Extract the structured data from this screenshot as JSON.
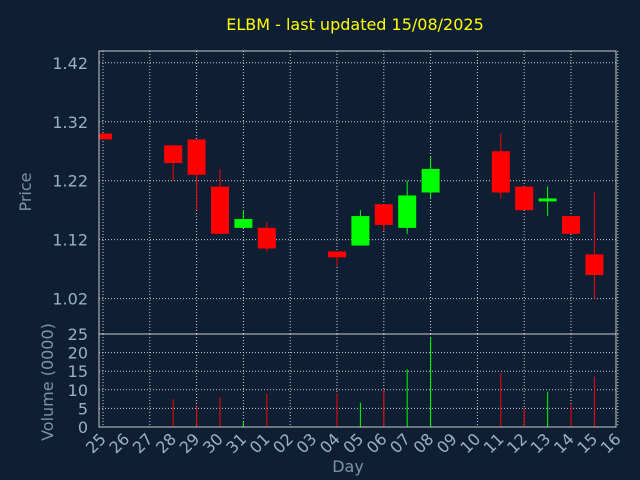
{
  "chart_data": {
    "type": "candlestick",
    "title": "ELBM - last updated 15/08/2025",
    "xlabel": "Day",
    "price_panel": {
      "ylabel": "Price",
      "ylim": [
        0.96,
        1.44
      ],
      "yticks": [
        "1.42",
        "1.32",
        "1.22",
        "1.12",
        "1.02"
      ],
      "ytick_values": [
        1.42,
        1.32,
        1.22,
        1.12,
        1.02
      ],
      "grid": true
    },
    "volume_panel": {
      "ylabel": "Volume (0000)",
      "ylim": [
        0,
        25
      ],
      "yticks": [
        "25",
        "20",
        "15",
        "10",
        "5",
        "0"
      ],
      "ytick_values": [
        25,
        20,
        15,
        10,
        5,
        0
      ],
      "grid": true
    },
    "x_ticks": [
      "25",
      "26",
      "27",
      "28",
      "29",
      "30",
      "31",
      "01",
      "02",
      "03",
      "04",
      "05",
      "06",
      "07",
      "08",
      "09",
      "10",
      "11",
      "12",
      "13",
      "14",
      "15",
      "16"
    ],
    "colors": {
      "up": "#00ff00",
      "down": "#ff0000"
    },
    "candles": [
      {
        "day": "25",
        "open": 1.3,
        "close": 1.29,
        "high": 1.3,
        "low": 1.29,
        "volume": 0.0
      },
      {
        "day": "28",
        "open": 1.28,
        "close": 1.25,
        "high": 1.28,
        "low": 1.22,
        "volume": 7.5
      },
      {
        "day": "29",
        "open": 1.29,
        "close": 1.23,
        "high": 1.29,
        "low": 1.17,
        "volume": 5.5
      },
      {
        "day": "30",
        "open": 1.21,
        "close": 1.13,
        "high": 1.24,
        "low": 1.13,
        "volume": 8.0
      },
      {
        "day": "31",
        "open": 1.14,
        "close": 1.155,
        "high": 1.17,
        "low": 1.14,
        "volume": 1.5
      },
      {
        "day": "01",
        "open": 1.14,
        "close": 1.105,
        "high": 1.15,
        "low": 1.1,
        "volume": 9.0
      },
      {
        "day": "04",
        "open": 1.1,
        "close": 1.09,
        "high": 1.1,
        "low": 1.075,
        "volume": 9.0
      },
      {
        "day": "05",
        "open": 1.11,
        "close": 1.16,
        "high": 1.17,
        "low": 1.11,
        "volume": 6.5
      },
      {
        "day": "06",
        "open": 1.18,
        "close": 1.145,
        "high": 1.18,
        "low": 1.135,
        "volume": 10.0
      },
      {
        "day": "07",
        "open": 1.14,
        "close": 1.195,
        "high": 1.22,
        "low": 1.13,
        "volume": 15.5
      },
      {
        "day": "08",
        "open": 1.2,
        "close": 1.24,
        "high": 1.26,
        "low": 1.19,
        "volume": 24.0
      },
      {
        "day": "11",
        "open": 1.27,
        "close": 1.2,
        "high": 1.3,
        "low": 1.19,
        "volume": 14.5
      },
      {
        "day": "12",
        "open": 1.21,
        "close": 1.17,
        "high": 1.21,
        "low": 1.17,
        "volume": 5.0
      },
      {
        "day": "13",
        "open": 1.185,
        "close": 1.19,
        "high": 1.21,
        "low": 1.16,
        "volume": 9.5
      },
      {
        "day": "14",
        "open": 1.16,
        "close": 1.13,
        "high": 1.16,
        "low": 1.13,
        "volume": 6.0
      },
      {
        "day": "15",
        "open": 1.095,
        "close": 1.06,
        "high": 1.2,
        "low": 1.02,
        "volume": 13.5
      }
    ]
  }
}
